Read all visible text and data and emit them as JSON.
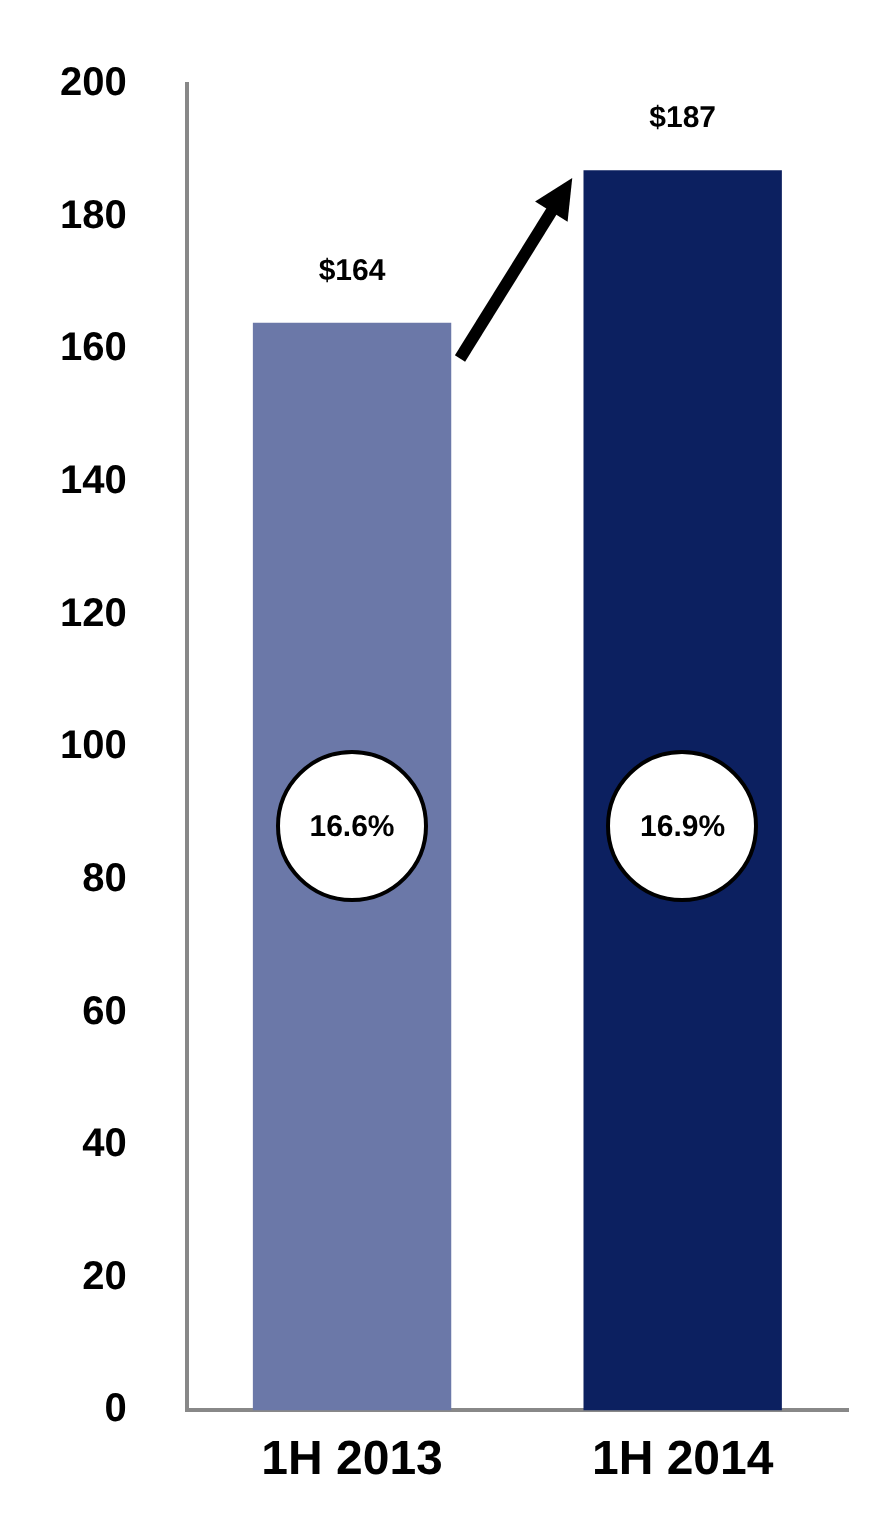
{
  "chart_data": {
    "type": "bar",
    "categories": [
      "1H 2013",
      "1H 2014"
    ],
    "values": [
      164,
      187
    ],
    "colors": [
      "#6b78a8",
      "#0c2060"
    ],
    "value_labels": [
      "$164",
      "$187"
    ],
    "annotations": [
      "16.6%",
      "16.9%"
    ],
    "ylim": [
      0,
      200
    ],
    "yticks": [
      0,
      20,
      40,
      60,
      80,
      100,
      120,
      140,
      160,
      180,
      200
    ],
    "grid": false,
    "legend": false
  }
}
